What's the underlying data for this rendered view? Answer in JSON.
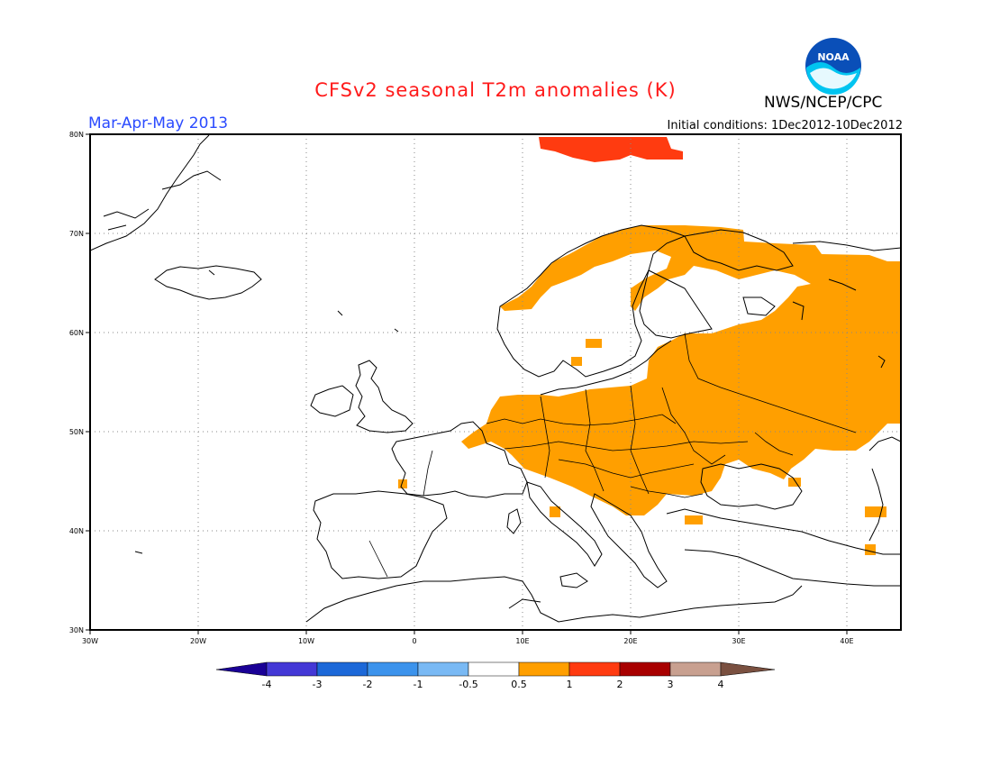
{
  "header": {
    "title": "CFSv2 seasonal T2m anomalies (K)",
    "period": "Mar-Apr-May 2013",
    "agency": "NWS/NCEP/CPC",
    "initial_conditions": "Initial conditions: 1Dec2012-10Dec2012",
    "logo_text": "NOAA"
  },
  "map": {
    "lon_range": [
      -30,
      45
    ],
    "lat_range": [
      30,
      80
    ],
    "lon_labels": [
      "30W",
      "20W",
      "10W",
      "0",
      "10E",
      "20E",
      "30E",
      "40E"
    ],
    "lat_labels": [
      "30N",
      "40N",
      "50N",
      "60N",
      "70N",
      "80N"
    ],
    "grid_style": "dotted",
    "anomaly_regions": [
      {
        "name": "Svalbard",
        "category": "1 to 2",
        "color": "#ff3b10"
      },
      {
        "name": "Northern Scandinavia",
        "category": "0.5 to 1",
        "color": "#ff9f00"
      },
      {
        "name": "Central and Eastern Europe",
        "category": "0.5 to 1",
        "color": "#ff9f00"
      },
      {
        "name": "Western Russia",
        "category": "0.5 to 1",
        "color": "#ff9f00"
      }
    ]
  },
  "colorbar": {
    "labels": [
      "-4",
      "-3",
      "-2",
      "-1",
      "-0.5",
      "0.5",
      "1",
      "2",
      "3",
      "4"
    ],
    "colors": [
      "#1a0096",
      "#4438d6",
      "#1c68d8",
      "#3c93ec",
      "#79b9f4",
      "#ffffff",
      "#ff9f00",
      "#ff3b10",
      "#a80000",
      "#c8a090",
      "#7a5040"
    ]
  }
}
